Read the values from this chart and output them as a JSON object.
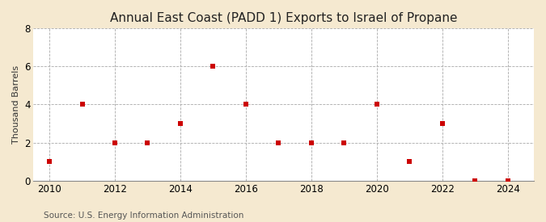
{
  "title": "Annual East Coast (PADD 1) Exports to Israel of Propane",
  "ylabel": "Thousand Barrels",
  "source": "Source: U.S. Energy Information Administration",
  "years": [
    2010,
    2011,
    2012,
    2013,
    2014,
    2015,
    2016,
    2017,
    2018,
    2019,
    2020,
    2021,
    2022,
    2023,
    2024
  ],
  "values": [
    1,
    4,
    2,
    2,
    3,
    6,
    4,
    2,
    2,
    2,
    4,
    1,
    3,
    0,
    0
  ],
  "xlim": [
    2009.5,
    2024.8
  ],
  "ylim": [
    0,
    8
  ],
  "yticks": [
    0,
    2,
    4,
    6,
    8
  ],
  "xticks": [
    2010,
    2012,
    2014,
    2016,
    2018,
    2020,
    2022,
    2024
  ],
  "marker_color": "#cc0000",
  "marker": "s",
  "marker_size": 4,
  "fig_bg_color": "#f5e9d0",
  "plot_bg_color": "#ffffff",
  "grid_color": "#aaaaaa",
  "title_fontsize": 11,
  "label_fontsize": 8,
  "tick_fontsize": 8.5,
  "source_fontsize": 7.5
}
